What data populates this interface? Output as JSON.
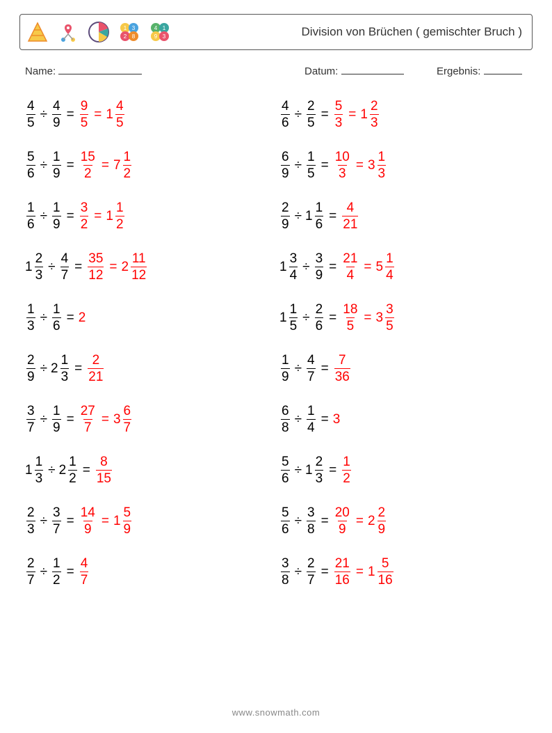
{
  "header": {
    "title": "Division von Brüchen ( gemischter Bruch )",
    "title_fontsize": 17,
    "title_color": "#333333",
    "border_color": "#555555"
  },
  "meta": {
    "name_label": "Name:",
    "name_underline_width": 120,
    "datum_label": "Datum:",
    "datum_underline_width": 90,
    "ergebnis_label": "Ergebnis:",
    "ergebnis_underline_width": 55,
    "fontsize": 15,
    "color": "#333333"
  },
  "style": {
    "body_fontsize": 19,
    "text_color": "#000000",
    "answer_color": "#ff0000",
    "background": "#ffffff",
    "row_gap": 30,
    "division_sign": "÷",
    "equals_sign": "="
  },
  "columns": 2,
  "rows": 10,
  "problems": [
    {
      "a": {
        "type": "frac",
        "n": 4,
        "d": 5
      },
      "b": {
        "type": "frac",
        "n": 4,
        "d": 9
      },
      "ans1": {
        "type": "frac",
        "n": 9,
        "d": 5
      },
      "ans2": {
        "type": "mixed",
        "w": 1,
        "n": 4,
        "d": 5
      }
    },
    {
      "a": {
        "type": "frac",
        "n": 4,
        "d": 6
      },
      "b": {
        "type": "frac",
        "n": 2,
        "d": 5
      },
      "ans1": {
        "type": "frac",
        "n": 5,
        "d": 3
      },
      "ans2": {
        "type": "mixed",
        "w": 1,
        "n": 2,
        "d": 3
      }
    },
    {
      "a": {
        "type": "frac",
        "n": 5,
        "d": 6
      },
      "b": {
        "type": "frac",
        "n": 1,
        "d": 9
      },
      "ans1": {
        "type": "frac",
        "n": 15,
        "d": 2
      },
      "ans2": {
        "type": "mixed",
        "w": 7,
        "n": 1,
        "d": 2
      }
    },
    {
      "a": {
        "type": "frac",
        "n": 6,
        "d": 9
      },
      "b": {
        "type": "frac",
        "n": 1,
        "d": 5
      },
      "ans1": {
        "type": "frac",
        "n": 10,
        "d": 3
      },
      "ans2": {
        "type": "mixed",
        "w": 3,
        "n": 1,
        "d": 3
      }
    },
    {
      "a": {
        "type": "frac",
        "n": 1,
        "d": 6
      },
      "b": {
        "type": "frac",
        "n": 1,
        "d": 9
      },
      "ans1": {
        "type": "frac",
        "n": 3,
        "d": 2
      },
      "ans2": {
        "type": "mixed",
        "w": 1,
        "n": 1,
        "d": 2
      }
    },
    {
      "a": {
        "type": "frac",
        "n": 2,
        "d": 9
      },
      "b": {
        "type": "mixed",
        "w": 1,
        "n": 1,
        "d": 6
      },
      "ans1": {
        "type": "frac",
        "n": 4,
        "d": 21
      }
    },
    {
      "a": {
        "type": "mixed",
        "w": 1,
        "n": 2,
        "d": 3
      },
      "b": {
        "type": "frac",
        "n": 4,
        "d": 7
      },
      "ans1": {
        "type": "frac",
        "n": 35,
        "d": 12
      },
      "ans2": {
        "type": "mixed",
        "w": 2,
        "n": 11,
        "d": 12
      }
    },
    {
      "a": {
        "type": "mixed",
        "w": 1,
        "n": 3,
        "d": 4
      },
      "b": {
        "type": "frac",
        "n": 3,
        "d": 9
      },
      "ans1": {
        "type": "frac",
        "n": 21,
        "d": 4
      },
      "ans2": {
        "type": "mixed",
        "w": 5,
        "n": 1,
        "d": 4
      }
    },
    {
      "a": {
        "type": "frac",
        "n": 1,
        "d": 3
      },
      "b": {
        "type": "frac",
        "n": 1,
        "d": 6
      },
      "ans1": {
        "type": "int",
        "v": 2
      }
    },
    {
      "a": {
        "type": "mixed",
        "w": 1,
        "n": 1,
        "d": 5
      },
      "b": {
        "type": "frac",
        "n": 2,
        "d": 6
      },
      "ans1": {
        "type": "frac",
        "n": 18,
        "d": 5
      },
      "ans2": {
        "type": "mixed",
        "w": 3,
        "n": 3,
        "d": 5
      }
    },
    {
      "a": {
        "type": "frac",
        "n": 2,
        "d": 9
      },
      "b": {
        "type": "mixed",
        "w": 2,
        "n": 1,
        "d": 3
      },
      "ans1": {
        "type": "frac",
        "n": 2,
        "d": 21
      }
    },
    {
      "a": {
        "type": "frac",
        "n": 1,
        "d": 9
      },
      "b": {
        "type": "frac",
        "n": 4,
        "d": 7
      },
      "ans1": {
        "type": "frac",
        "n": 7,
        "d": 36
      }
    },
    {
      "a": {
        "type": "frac",
        "n": 3,
        "d": 7
      },
      "b": {
        "type": "frac",
        "n": 1,
        "d": 9
      },
      "ans1": {
        "type": "frac",
        "n": 27,
        "d": 7
      },
      "ans2": {
        "type": "mixed",
        "w": 3,
        "n": 6,
        "d": 7
      }
    },
    {
      "a": {
        "type": "frac",
        "n": 6,
        "d": 8
      },
      "b": {
        "type": "frac",
        "n": 1,
        "d": 4
      },
      "ans1": {
        "type": "int",
        "v": 3
      }
    },
    {
      "a": {
        "type": "mixed",
        "w": 1,
        "n": 1,
        "d": 3
      },
      "b": {
        "type": "mixed",
        "w": 2,
        "n": 1,
        "d": 2
      },
      "ans1": {
        "type": "frac",
        "n": 8,
        "d": 15
      }
    },
    {
      "a": {
        "type": "frac",
        "n": 5,
        "d": 6
      },
      "b": {
        "type": "mixed",
        "w": 1,
        "n": 2,
        "d": 3
      },
      "ans1": {
        "type": "frac",
        "n": 1,
        "d": 2
      }
    },
    {
      "a": {
        "type": "frac",
        "n": 2,
        "d": 3
      },
      "b": {
        "type": "frac",
        "n": 3,
        "d": 7
      },
      "ans1": {
        "type": "frac",
        "n": 14,
        "d": 9
      },
      "ans2": {
        "type": "mixed",
        "w": 1,
        "n": 5,
        "d": 9
      }
    },
    {
      "a": {
        "type": "frac",
        "n": 5,
        "d": 6
      },
      "b": {
        "type": "frac",
        "n": 3,
        "d": 8
      },
      "ans1": {
        "type": "frac",
        "n": 20,
        "d": 9
      },
      "ans2": {
        "type": "mixed",
        "w": 2,
        "n": 2,
        "d": 9
      }
    },
    {
      "a": {
        "type": "frac",
        "n": 2,
        "d": 7
      },
      "b": {
        "type": "frac",
        "n": 1,
        "d": 2
      },
      "ans1": {
        "type": "frac",
        "n": 4,
        "d": 7
      }
    },
    {
      "a": {
        "type": "frac",
        "n": 3,
        "d": 8
      },
      "b": {
        "type": "frac",
        "n": 2,
        "d": 7
      },
      "ans1": {
        "type": "frac",
        "n": 21,
        "d": 16
      },
      "ans2": {
        "type": "mixed",
        "w": 1,
        "n": 5,
        "d": 16
      }
    }
  ],
  "footer": {
    "text": "www.snowmath.com",
    "color": "#888888",
    "fontsize": 13
  },
  "icons": {
    "colors": {
      "yellow": "#f7c948",
      "orange": "#ee8c2b",
      "red": "#e9536b",
      "pink": "#ec6aa0",
      "teal": "#3aa6a0",
      "blue": "#4aa3df",
      "green": "#57b26a",
      "dark": "#5b4a7a"
    }
  }
}
